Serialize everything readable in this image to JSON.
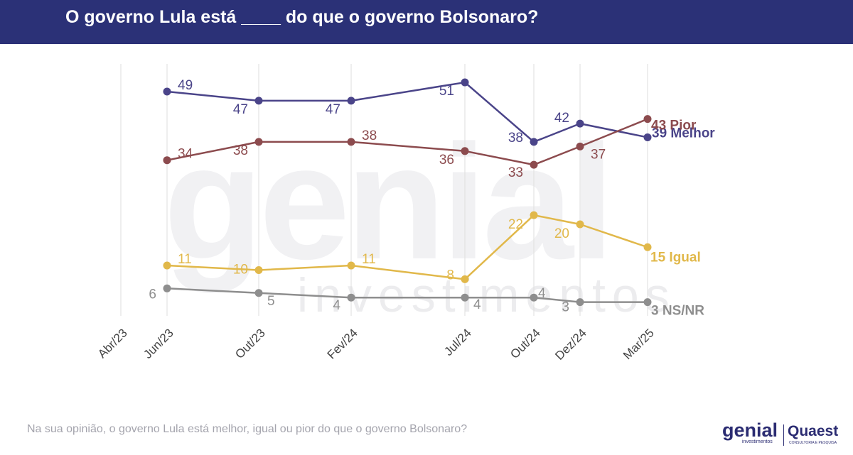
{
  "header": {
    "title": "O governo Lula está ____ do que o governo Bolsonaro?",
    "background_color": "#2b3177"
  },
  "watermark": {
    "main": "genial",
    "sub": "investimentos"
  },
  "footer": {
    "question": "Na sua opinião, o governo Lula está melhor, igual ou pior do que o governo Bolsonaro?",
    "logo_genial": "genial",
    "logo_genial_sub": "investimentos",
    "logo_quaest": "Quaest",
    "logo_quaest_sub": "CONSULTORIA E PESQUISA"
  },
  "chart_data": {
    "type": "line",
    "title": "O governo Lula está ____ do que o governo Bolsonaro?",
    "xlabel": "",
    "ylabel": "",
    "ylim": [
      0,
      60
    ],
    "grid": "vertical",
    "categories": [
      "Abr/23",
      "Jun/23",
      "Out/23",
      "Fev/24",
      "Jul/24",
      "Out/24",
      "Dez/24",
      "Mar/25"
    ],
    "series": [
      {
        "name": "Melhor",
        "color": "#4a4489",
        "values": [
          null,
          49,
          47,
          47,
          51,
          38,
          42,
          39
        ],
        "end_label": "39 Melhor"
      },
      {
        "name": "Pior",
        "color": "#8c4b4e",
        "values": [
          null,
          34,
          38,
          38,
          36,
          33,
          37,
          43
        ],
        "end_label": "43 Pior"
      },
      {
        "name": "Igual",
        "color": "#e1b84a",
        "values": [
          null,
          11,
          10,
          11,
          8,
          22,
          20,
          15
        ],
        "end_label": "15 Igual"
      },
      {
        "name": "NS/NR",
        "color": "#8e8e8e",
        "values": [
          null,
          6,
          5,
          4,
          4,
          4,
          3,
          3
        ],
        "end_label": "3 NS/NR"
      }
    ]
  }
}
